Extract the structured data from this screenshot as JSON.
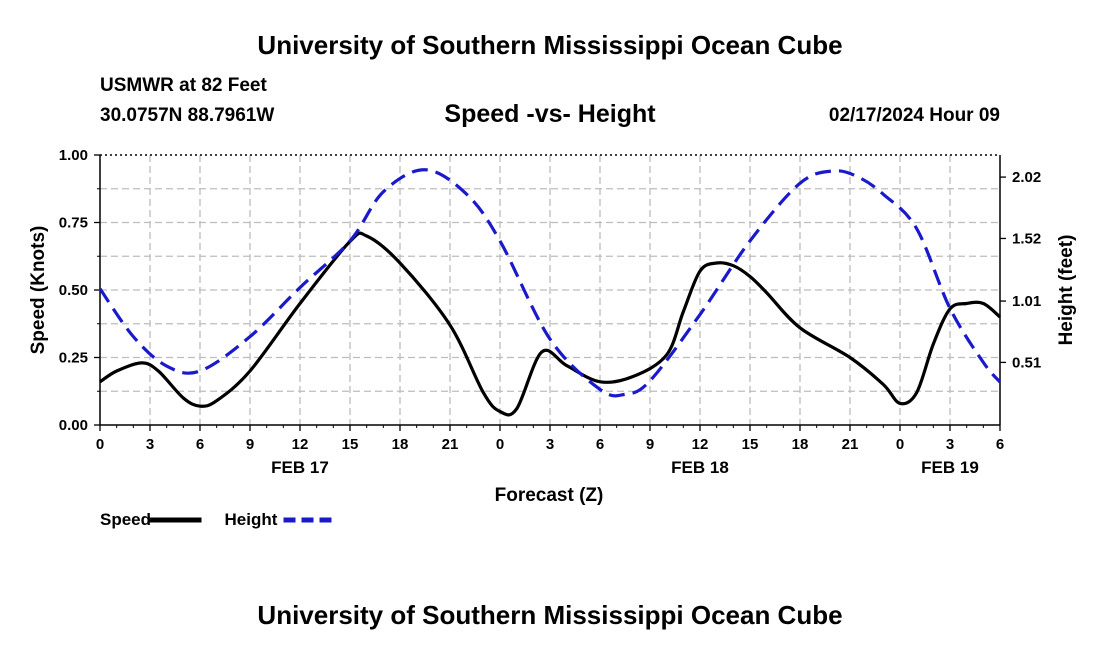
{
  "header": {
    "title_top": "University of Southern Mississippi Ocean Cube",
    "station": "USMWR at 82 Feet",
    "coords": "30.0757N  88.7961W",
    "datetime": "02/17/2024 Hour 09",
    "title_bottom": "University of Southern Mississippi Ocean Cube"
  },
  "chart_data": {
    "type": "line",
    "title": "Speed -vs- Height",
    "xlabel": "Forecast (Z)",
    "ylabel_left": "Speed (Knots)",
    "ylabel_right": "Height (feet)",
    "x_hours_range": [
      0,
      54
    ],
    "x_ticks": [
      0,
      3,
      6,
      9,
      12,
      15,
      18,
      21,
      24,
      27,
      30,
      33,
      36,
      39,
      42,
      45,
      48,
      51,
      54
    ],
    "x_tick_labels": [
      "0",
      "3",
      "6",
      "9",
      "12",
      "15",
      "18",
      "21",
      "0",
      "3",
      "6",
      "9",
      "12",
      "15",
      "18",
      "21",
      "0",
      "3",
      "6"
    ],
    "date_labels": [
      {
        "hour": 12,
        "label": "FEB 17"
      },
      {
        "hour": 36,
        "label": "FEB 18"
      },
      {
        "hour": 51,
        "label": "FEB 19"
      }
    ],
    "ylim_left": [
      0,
      1.0
    ],
    "yticks_left": [
      0,
      0.25,
      0.5,
      0.75,
      1.0
    ],
    "ytick_labels_left": [
      "0.00",
      "0.25",
      "0.50",
      "0.75",
      "1.00"
    ],
    "ylim_right": [
      0,
      2.2
    ],
    "yticks_right": [
      0.51,
      1.01,
      1.52,
      2.02
    ],
    "ytick_labels_right": [
      "0.51",
      "1.01",
      "1.52",
      "2.02"
    ],
    "grid": true,
    "series": [
      {
        "name": "Speed",
        "axis": "left",
        "color": "#000000",
        "dash": "solid",
        "x": [
          0,
          1,
          2.5,
          3.5,
          5,
          6,
          7,
          9,
          12,
          15,
          16,
          18,
          21,
          23,
          24,
          25,
          26.5,
          28,
          30,
          32,
          34,
          35,
          36,
          37,
          38,
          39,
          40,
          42,
          45,
          47,
          48,
          49,
          50,
          51,
          52,
          53,
          54
        ],
        "values": [
          0.16,
          0.2,
          0.23,
          0.2,
          0.1,
          0.07,
          0.09,
          0.2,
          0.45,
          0.68,
          0.7,
          0.6,
          0.37,
          0.12,
          0.05,
          0.06,
          0.27,
          0.22,
          0.16,
          0.18,
          0.26,
          0.42,
          0.57,
          0.6,
          0.59,
          0.55,
          0.49,
          0.36,
          0.25,
          0.15,
          0.08,
          0.12,
          0.3,
          0.43,
          0.45,
          0.45,
          0.4
        ]
      },
      {
        "name": "Height",
        "axis": "right",
        "color": "#1a1acc",
        "dash": "dashed",
        "x": [
          0,
          2,
          4,
          6,
          9,
          12,
          15,
          17,
          19.5,
          22,
          24,
          27,
          30,
          31.5,
          33,
          36,
          39,
          42,
          44,
          45.5,
          47,
          49,
          51,
          53,
          54
        ],
        "values": [
          1.11,
          0.72,
          0.48,
          0.44,
          0.72,
          1.12,
          1.5,
          1.9,
          2.08,
          1.88,
          1.5,
          0.7,
          0.29,
          0.25,
          0.36,
          0.9,
          1.5,
          1.97,
          2.07,
          2.02,
          1.88,
          1.6,
          0.95,
          0.51,
          0.35
        ]
      }
    ],
    "legend": [
      {
        "label": "Speed",
        "color": "#000000",
        "dash": "solid"
      },
      {
        "label": "Height",
        "color": "#1a1acc",
        "dash": "dashed"
      }
    ],
    "legend_position": "bottom-left"
  }
}
